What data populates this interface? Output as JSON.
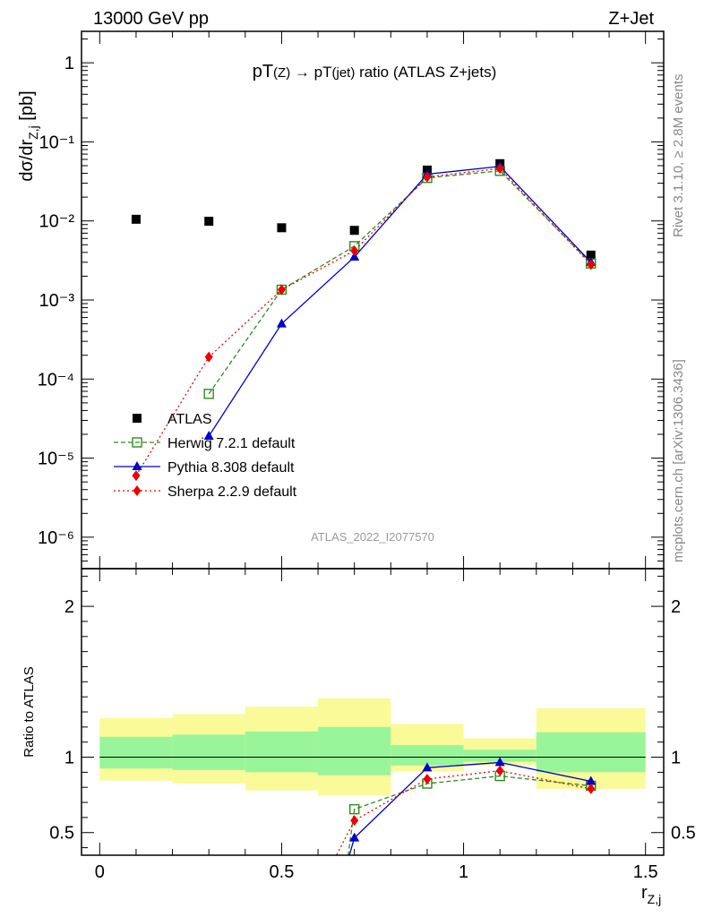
{
  "header": {
    "left": "13000 GeV pp",
    "right": "Z+Jet"
  },
  "side_labels": {
    "rivet": "Rivet 3.1.10, ≥ 2.8M events",
    "mcplots": "mcplots.cern.ch [arXiv:1306.3436]"
  },
  "colors": {
    "data": "#000000",
    "herwig": "#2e8b1e",
    "pythia": "#0000cc",
    "sherpa": "#ee0000",
    "band_inner": "#99f599",
    "band_outer": "#fafa99"
  },
  "chart_data": [
    {
      "type": "line",
      "title": "pT(Z) → pT(jet) ratio (ATLAS Z+jets)",
      "title_main": "pT",
      "title_sub": "(Z)",
      "title_mid": " → pT",
      "title_sub2": "(jet)",
      "title_rest": " ratio (ATLAS Z+jets)",
      "analysis_id": "ATLAS_2022_I2077570",
      "ylabel": "dσ/dr",
      "ylabel_sub": "Z,j",
      "ylabel_unit": " [pb]",
      "yscale": "log",
      "xlim": [
        -0.05,
        1.55
      ],
      "ylim": [
        4e-07,
        2.5
      ],
      "ytick_labels": [
        "10⁻⁶",
        "10⁻⁵",
        "10⁻⁴",
        "10⁻³",
        "10⁻²",
        "10⁻¹",
        "1"
      ],
      "grid": false,
      "legend_position": "bottom-left",
      "series": [
        {
          "name": "ATLAS",
          "key": "data",
          "x": [
            0.1,
            0.3,
            0.5,
            0.7,
            0.9,
            1.1,
            1.35
          ],
          "y": [
            0.0105,
            0.0099,
            0.0082,
            0.0076,
            0.044,
            0.053,
            0.0037
          ]
        },
        {
          "name": "Herwig 7.2.1 default",
          "key": "herwig",
          "x": [
            0.3,
            0.5,
            0.7,
            0.9,
            1.1,
            1.35
          ],
          "y": [
            6.5e-05,
            0.00135,
            0.0048,
            0.035,
            0.043,
            0.0029
          ]
        },
        {
          "name": "Pythia 8.308 default",
          "key": "pythia",
          "x": [
            0.3,
            0.5,
            0.7,
            0.9,
            1.1,
            1.35
          ],
          "y": [
            1.9e-05,
            0.0005,
            0.0035,
            0.039,
            0.049,
            0.003
          ]
        },
        {
          "name": "Sherpa 2.2.9 default",
          "key": "sherpa",
          "x": [
            0.1,
            0.3,
            0.5,
            0.7,
            0.9,
            1.1,
            1.35
          ],
          "y": [
            6e-06,
            0.00019,
            0.00135,
            0.0042,
            0.036,
            0.046,
            0.0028
          ]
        }
      ]
    },
    {
      "type": "line",
      "xlabel": "r",
      "xlabel_sub": "Z,j",
      "ylabel": "Ratio to ATLAS",
      "xlim": [
        -0.05,
        1.55
      ],
      "ylim": [
        0.35,
        2.25
      ],
      "xtick_labels": [
        "0",
        "0.5",
        "1",
        "1.5"
      ],
      "ytick_labels": [
        "0.5",
        "1",
        "2"
      ],
      "bands": [
        {
          "x": [
            0.0,
            0.2
          ],
          "inner": [
            0.925,
            1.135
          ],
          "outer": [
            0.845,
            1.26
          ]
        },
        {
          "x": [
            0.2,
            0.4
          ],
          "inner": [
            0.915,
            1.15
          ],
          "outer": [
            0.825,
            1.285
          ]
        },
        {
          "x": [
            0.4,
            0.6
          ],
          "inner": [
            0.9,
            1.17
          ],
          "outer": [
            0.78,
            1.335
          ]
        },
        {
          "x": [
            0.6,
            0.8
          ],
          "inner": [
            0.88,
            1.2
          ],
          "outer": [
            0.745,
            1.39
          ]
        },
        {
          "x": [
            0.8,
            1.0
          ],
          "inner": [
            0.945,
            1.08
          ],
          "outer": [
            0.905,
            1.22
          ]
        },
        {
          "x": [
            1.0,
            1.2
          ],
          "inner": [
            0.97,
            1.05
          ],
          "outer": [
            0.945,
            1.125
          ]
        },
        {
          "x": [
            1.2,
            1.5
          ],
          "inner": [
            0.9,
            1.165
          ],
          "outer": [
            0.79,
            1.325
          ]
        }
      ],
      "series": [
        {
          "name": "Herwig 7.2.1 default",
          "key": "herwig",
          "x": [
            0.68,
            0.7,
            0.9,
            1.1,
            1.35
          ],
          "y": [
            0.3,
            0.655,
            0.825,
            0.875,
            0.81
          ]
        },
        {
          "name": "Pythia 8.308 default",
          "key": "pythia",
          "x": [
            0.68,
            0.7,
            0.9,
            1.1,
            1.35
          ],
          "y": [
            0.3,
            0.465,
            0.93,
            0.965,
            0.84
          ]
        },
        {
          "name": "Sherpa 2.2.9 default",
          "key": "sherpa",
          "x": [
            0.64,
            0.7,
            0.9,
            1.1,
            1.35
          ],
          "y": [
            0.3,
            0.58,
            0.855,
            0.91,
            0.79
          ]
        }
      ]
    }
  ]
}
